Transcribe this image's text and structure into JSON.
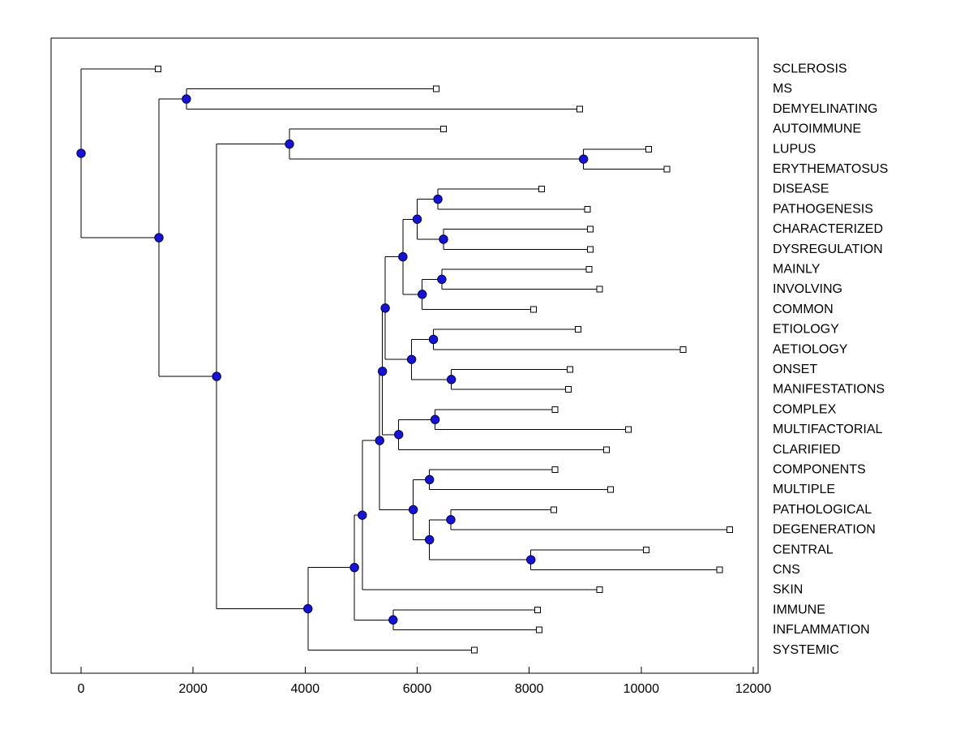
{
  "figure": {
    "background": "#ffffff",
    "plot_border_color": "#000000"
  },
  "chart_data": {
    "type": "tree",
    "subtype": "horizontal-dendrogram",
    "title": "",
    "xlabel": "",
    "ylabel": "",
    "grid": false,
    "legend": false,
    "xlim": [
      -550,
      12150
    ],
    "x_ticks": [
      0,
      2000,
      4000,
      6000,
      8000,
      10000,
      12000
    ],
    "x_tick_labels": [
      "0",
      "2000",
      "4000",
      "6000",
      "8000",
      "10000",
      "12000"
    ],
    "leaf_labels": [
      "SCLEROSIS",
      "MS",
      "DEMYELINATING",
      "AUTOIMMUNE",
      "LUPUS",
      "ERYTHEMATOSUS",
      "DISEASE",
      "PATHOGENESIS",
      "CHARACTERIZED",
      "DYSREGULATION",
      "MAINLY",
      "INVOLVING",
      "COMMON",
      "ETIOLOGY",
      "AETIOLOGY",
      "ONSET",
      "MANIFESTATIONS",
      "COMPLEX",
      "MULTIFACTORIAL",
      "CLARIFIED",
      "COMPONENTS",
      "MULTIPLE",
      "PATHOLOGICAL",
      "DEGENERATION",
      "CENTRAL",
      "CNS",
      "SKIN",
      "IMMUNE",
      "INFLAMMATION",
      "SYSTEMIC"
    ],
    "leaf_tip_values": [
      1375,
      6340,
      8900,
      6470,
      10130,
      10460,
      8220,
      9040,
      9090,
      9090,
      9070,
      9260,
      8075,
      8870,
      10750,
      8725,
      8700,
      8460,
      9770,
      9380,
      8460,
      9450,
      8440,
      11580,
      10090,
      11400,
      9260,
      8150,
      8180,
      7020
    ],
    "markers": {
      "internal_node": "filled-circle",
      "leaf_node": "open-square"
    },
    "colors": {
      "branch_line": "#000000",
      "internal_node_fill": "#1414d2",
      "internal_node_edge": "#00004d",
      "leaf_marker_fill": "#ffffff",
      "leaf_marker_edge": "#000000",
      "label_color": "#000000",
      "axis_color": "#000000"
    },
    "tree": {
      "x": 0,
      "children": [
        {
          "label": "SCLEROSIS",
          "x": 1375
        },
        {
          "x": 1390,
          "children": [
            {
              "x": 1880,
              "children": [
                {
                  "label": "MS",
                  "x": 6340
                },
                {
                  "label": "DEMYELINATING",
                  "x": 8900
                }
              ]
            },
            {
              "x": 2420,
              "children": [
                {
                  "x": 3720,
                  "children": [
                    {
                      "label": "AUTOIMMUNE",
                      "x": 6470
                    },
                    {
                      "x": 8970,
                      "children": [
                        {
                          "label": "LUPUS",
                          "x": 10130
                        },
                        {
                          "label": "ERYTHEMATOSUS",
                          "x": 10460
                        }
                      ]
                    }
                  ]
                },
                {
                  "x": 4050,
                  "children": [
                    {
                      "x": 4880,
                      "children": [
                        {
                          "x": 5020,
                          "children": [
                            {
                              "x": 5330,
                              "children": [
                                {
                                  "x": 5380,
                                  "children": [
                                    {
                                      "x": 5430,
                                      "children": [
                                        {
                                          "x": 5745,
                                          "children": [
                                            {
                                              "x": 6000,
                                              "children": [
                                                {
                                                  "x": 6370,
                                                  "children": [
                                                    {
                                                      "label": "DISEASE",
                                                      "x": 8220
                                                    },
                                                    {
                                                      "label": "PATHOGENESIS",
                                                      "x": 9040
                                                    }
                                                  ]
                                                },
                                                {
                                                  "x": 6470,
                                                  "children": [
                                                    {
                                                      "label": "CHARACTERIZED",
                                                      "x": 9090
                                                    },
                                                    {
                                                      "label": "DYSREGULATION",
                                                      "x": 9090
                                                    }
                                                  ]
                                                }
                                              ]
                                            },
                                            {
                                              "x": 6090,
                                              "children": [
                                                {
                                                  "x": 6440,
                                                  "children": [
                                                    {
                                                      "label": "MAINLY",
                                                      "x": 9070
                                                    },
                                                    {
                                                      "label": "INVOLVING",
                                                      "x": 9260
                                                    }
                                                  ]
                                                },
                                                {
                                                  "label": "COMMON",
                                                  "x": 8075
                                                }
                                              ]
                                            }
                                          ]
                                        },
                                        {
                                          "x": 5900,
                                          "children": [
                                            {
                                              "x": 6290,
                                              "children": [
                                                {
                                                  "label": "ETIOLOGY",
                                                  "x": 8870
                                                },
                                                {
                                                  "label": "AETIOLOGY",
                                                  "x": 10750
                                                }
                                              ]
                                            },
                                            {
                                              "x": 6610,
                                              "children": [
                                                {
                                                  "label": "ONSET",
                                                  "x": 8725
                                                },
                                                {
                                                  "label": "MANIFESTATIONS",
                                                  "x": 8700
                                                }
                                              ]
                                            }
                                          ]
                                        }
                                      ]
                                    },
                                    {
                                      "x": 5670,
                                      "children": [
                                        {
                                          "x": 6320,
                                          "children": [
                                            {
                                              "label": "COMPLEX",
                                              "x": 8460
                                            },
                                            {
                                              "label": "MULTIFACTORIAL",
                                              "x": 9770
                                            }
                                          ]
                                        },
                                        {
                                          "label": "CLARIFIED",
                                          "x": 9380
                                        }
                                      ]
                                    }
                                  ]
                                },
                                {
                                  "x": 5930,
                                  "children": [
                                    {
                                      "x": 6220,
                                      "children": [
                                        {
                                          "label": "COMPONENTS",
                                          "x": 8460
                                        },
                                        {
                                          "label": "MULTIPLE",
                                          "x": 9450
                                        }
                                      ]
                                    },
                                    {
                                      "x": 6220,
                                      "children": [
                                        {
                                          "x": 6600,
                                          "children": [
                                            {
                                              "label": "PATHOLOGICAL",
                                              "x": 8440
                                            },
                                            {
                                              "label": "DEGENERATION",
                                              "x": 11580
                                            }
                                          ]
                                        },
                                        {
                                          "x": 8030,
                                          "children": [
                                            {
                                              "label": "CENTRAL",
                                              "x": 10090
                                            },
                                            {
                                              "label": "CNS",
                                              "x": 11400
                                            }
                                          ]
                                        }
                                      ]
                                    }
                                  ]
                                }
                              ]
                            },
                            {
                              "label": "SKIN",
                              "x": 9260
                            }
                          ]
                        },
                        {
                          "x": 5570,
                          "children": [
                            {
                              "label": "IMMUNE",
                              "x": 8150
                            },
                            {
                              "label": "INFLAMMATION",
                              "x": 8180
                            }
                          ]
                        }
                      ]
                    },
                    {
                      "label": "SYSTEMIC",
                      "x": 7020
                    }
                  ]
                }
              ]
            }
          ]
        }
      ]
    }
  }
}
